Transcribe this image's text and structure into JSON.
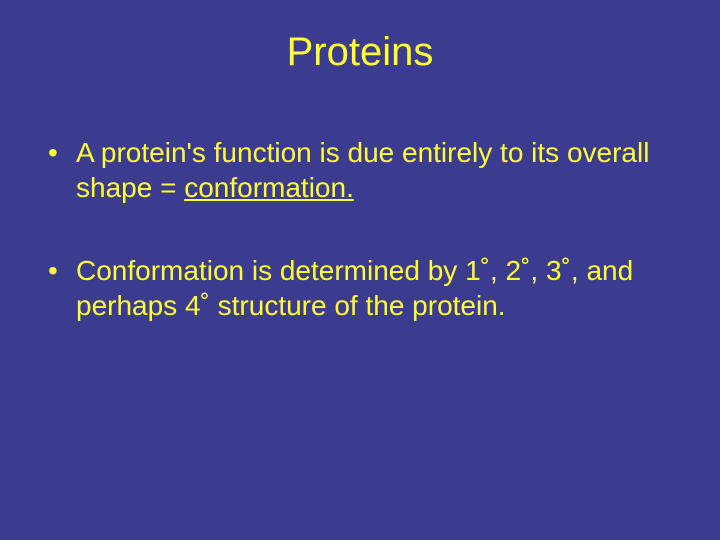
{
  "slide": {
    "title": "Proteins",
    "bullets": [
      {
        "pre": "A protein's function is due entirely to its overall shape = ",
        "underlined": "conformation."
      },
      {
        "text": "Conformation is determined by 1˚, 2˚, 3˚, and perhaps 4˚ structure of the protein."
      }
    ],
    "background_color": "#3b3b8f",
    "text_color": "#ffff33",
    "title_fontsize": 40,
    "body_fontsize": 28
  }
}
